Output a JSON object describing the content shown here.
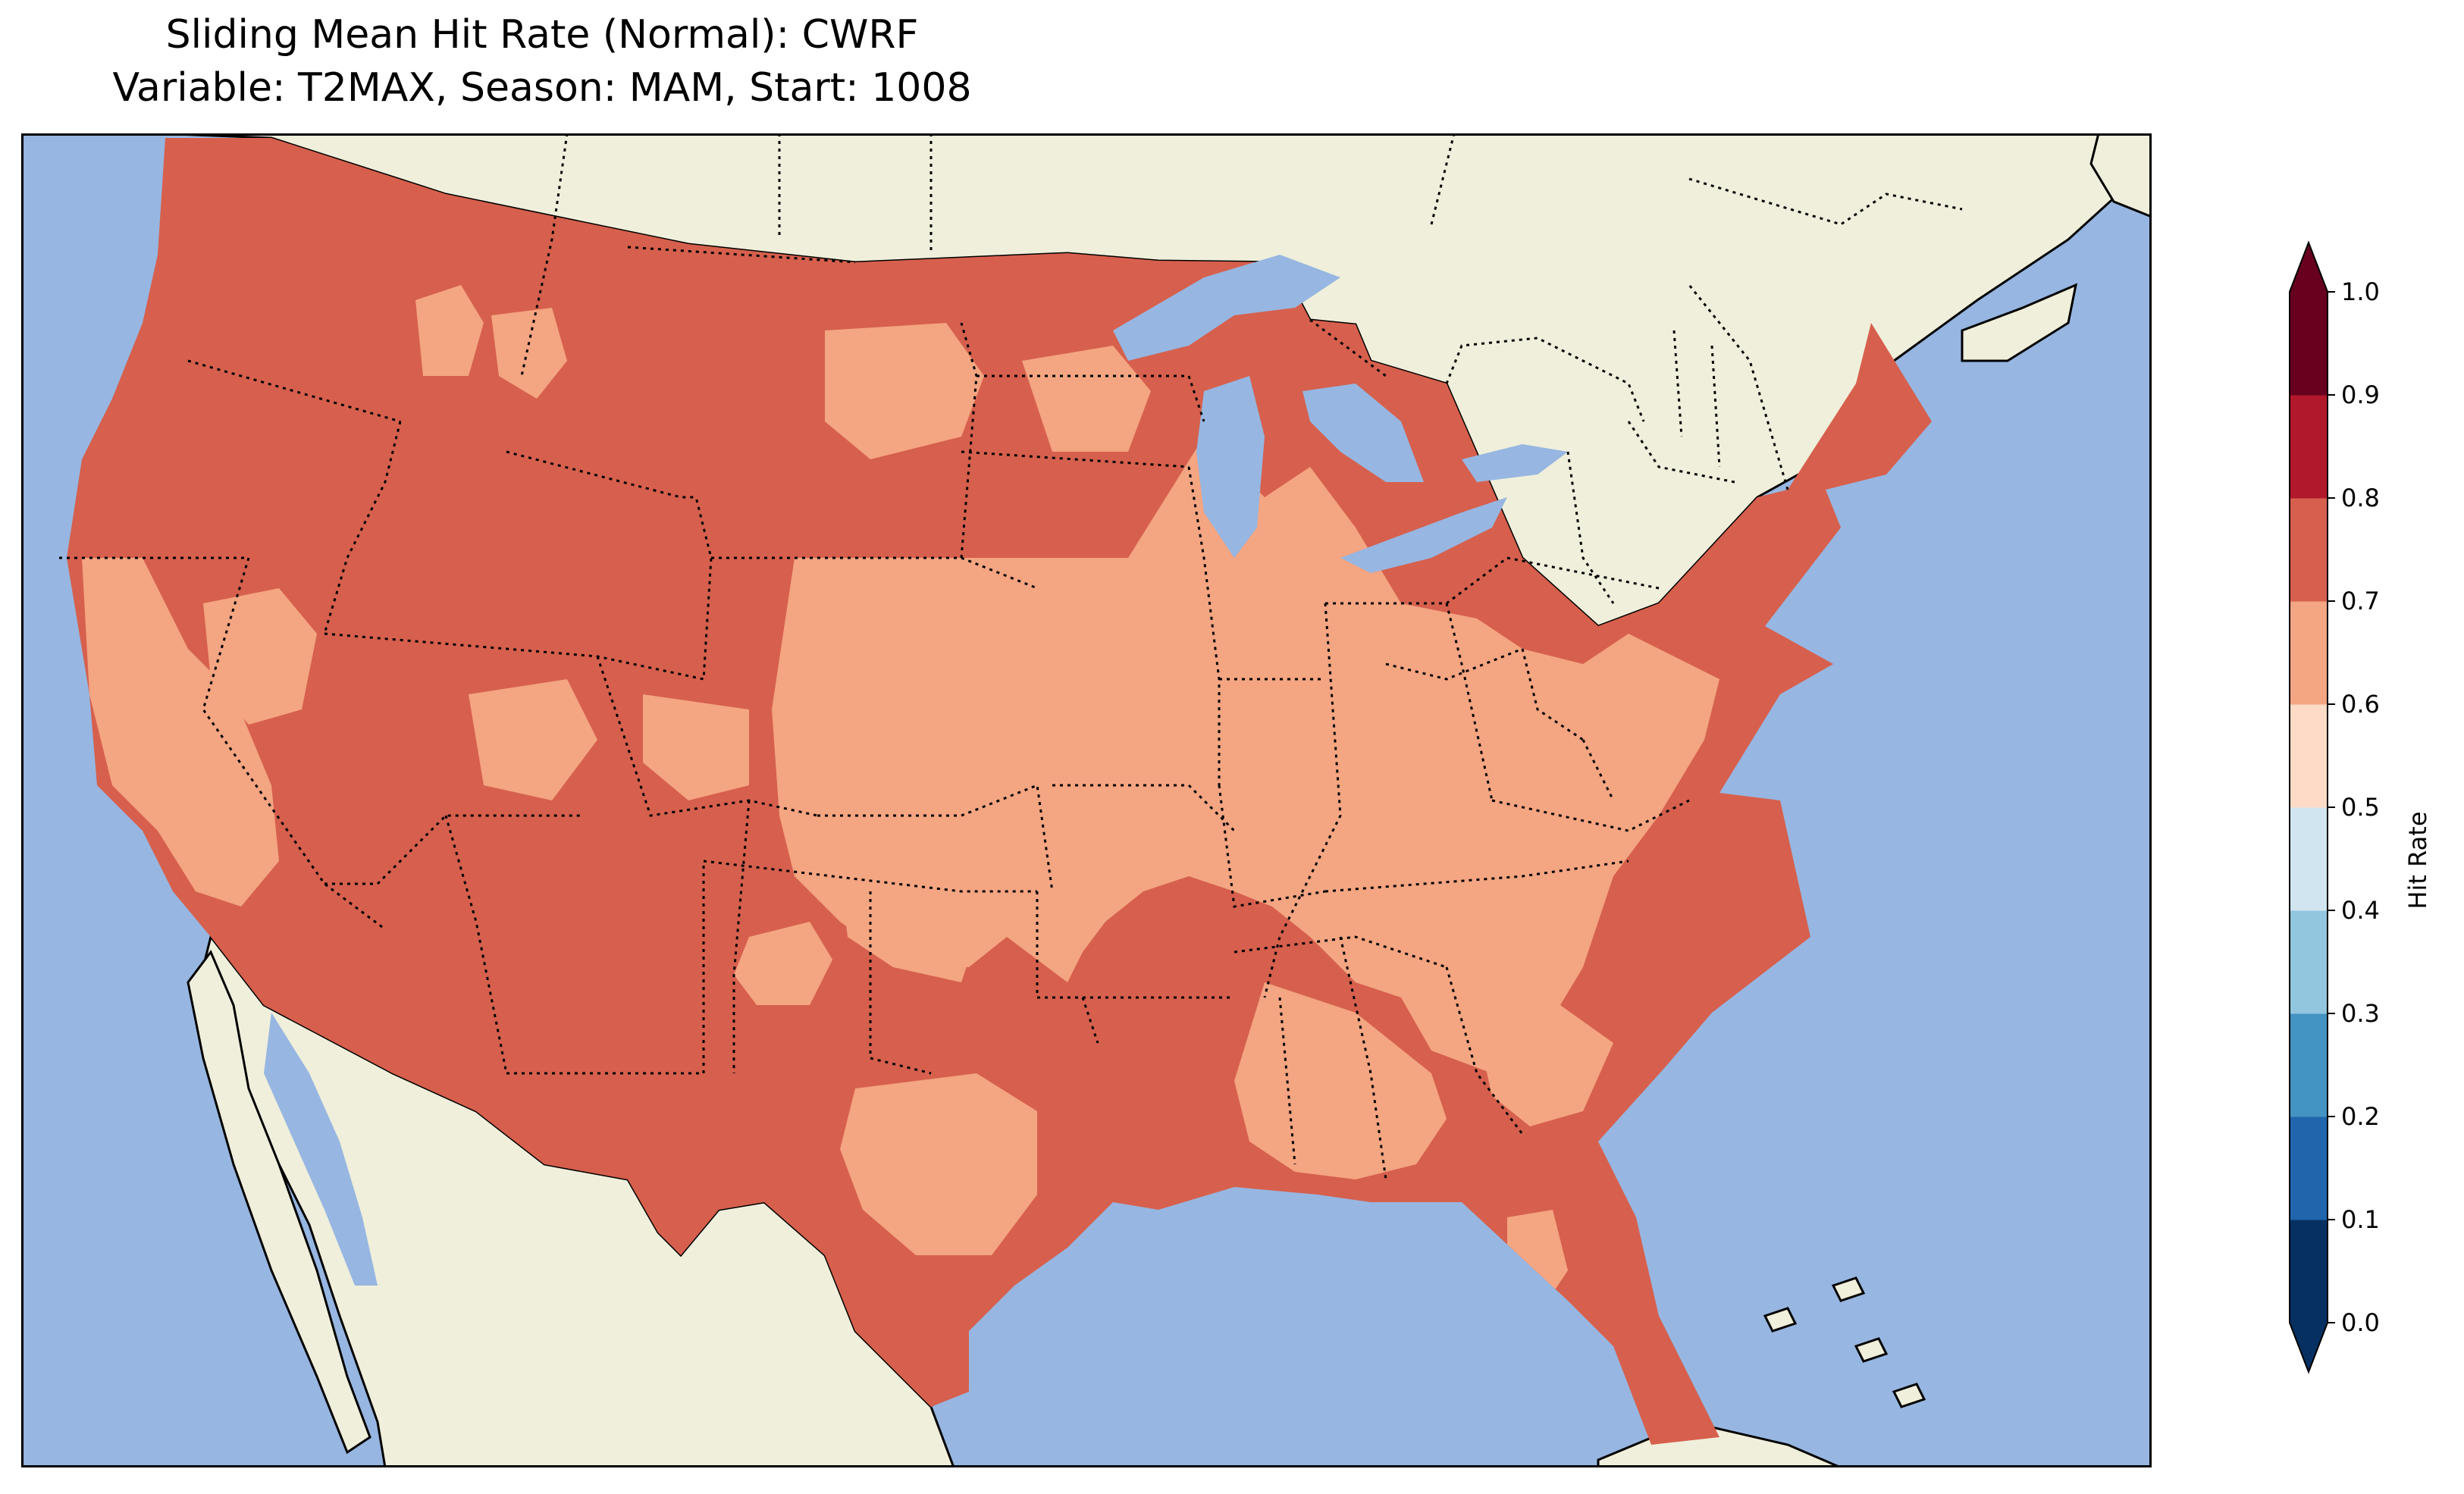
{
  "title": {
    "line1": "Sliding Mean Hit Rate (Normal): CWRF",
    "line2": "Variable: T2MAX, Season: MAM, Start: 1008"
  },
  "colors": {
    "ocean": "#97b6e1",
    "land": "#efefdb",
    "border": "#000000"
  },
  "colorbar": {
    "label": "Hit Rate",
    "ticks": [
      "0.0",
      "0.1",
      "0.2",
      "0.3",
      "0.4",
      "0.5",
      "0.6",
      "0.7",
      "0.8",
      "0.9",
      "1.0"
    ],
    "bins": [
      {
        "range": [
          0.0,
          0.1
        ],
        "color": "#053061"
      },
      {
        "range": [
          0.1,
          0.2
        ],
        "color": "#2166ac"
      },
      {
        "range": [
          0.2,
          0.3
        ],
        "color": "#4393c3"
      },
      {
        "range": [
          0.3,
          0.4
        ],
        "color": "#92c5de"
      },
      {
        "range": [
          0.4,
          0.5
        ],
        "color": "#d1e5f0"
      },
      {
        "range": [
          0.5,
          0.6
        ],
        "color": "#fddbc7"
      },
      {
        "range": [
          0.6,
          0.7
        ],
        "color": "#f4a582"
      },
      {
        "range": [
          0.7,
          0.8
        ],
        "color": "#d6604d"
      },
      {
        "range": [
          0.8,
          0.9
        ],
        "color": "#b2182b"
      },
      {
        "range": [
          0.9,
          1.0
        ],
        "color": "#67001f"
      }
    ],
    "extend": "both"
  },
  "regions": {
    "base_bin": "0.7-0.8",
    "overlay_bin": "0.6-0.7",
    "base_color": "#d6604d",
    "overlay_color": "#f4a582"
  }
}
